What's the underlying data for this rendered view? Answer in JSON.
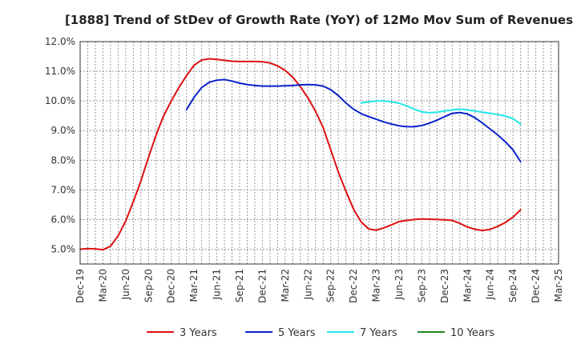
{
  "chart_data": {
    "type": "line",
    "title": "[1888]  Trend of StDev of Growth Rate (YoY) of 12Mo Mov Sum of Revenues",
    "xlabel": "",
    "ylabel": "",
    "ylim": [
      4.5,
      12.0
    ],
    "y_ticks": [
      5.0,
      6.0,
      7.0,
      8.0,
      9.0,
      10.0,
      11.0,
      12.0
    ],
    "y_tick_labels": [
      "5.0%",
      "6.0%",
      "7.0%",
      "8.0%",
      "9.0%",
      "10.0%",
      "11.0%",
      "12.0%"
    ],
    "x_tick_labels": [
      "Dec-19",
      "Mar-20",
      "Jun-20",
      "Sep-20",
      "Dec-20",
      "Mar-21",
      "Jun-21",
      "Sep-21",
      "Dec-21",
      "Mar-22",
      "Jun-22",
      "Sep-22",
      "Dec-22",
      "Mar-23",
      "Jun-23",
      "Sep-23",
      "Dec-23",
      "Mar-24",
      "Jun-24",
      "Sep-24",
      "Dec-24",
      "Mar-25"
    ],
    "grid": true,
    "legend_position": "bottom",
    "series": [
      {
        "name": "3 Years",
        "color": "#dd1111",
        "start_index": 0,
        "values": [
          5.0,
          5.02,
          5.01,
          4.98,
          5.1,
          5.45,
          5.95,
          6.6,
          7.3,
          8.1,
          8.85,
          9.5,
          10.0,
          10.45,
          10.85,
          11.2,
          11.38,
          11.42,
          11.4,
          11.37,
          11.34,
          11.33,
          11.33,
          11.33,
          11.32,
          11.28,
          11.18,
          11.03,
          10.8,
          10.48,
          10.1,
          9.65,
          9.1,
          8.35,
          7.6,
          6.95,
          6.35,
          5.92,
          5.68,
          5.64,
          5.72,
          5.82,
          5.93,
          5.97,
          6.0,
          6.02,
          6.01,
          6.0,
          5.99,
          5.97,
          5.87,
          5.75,
          5.67,
          5.63,
          5.67,
          5.77,
          5.9,
          6.08,
          6.33
        ]
      },
      {
        "name": "5 Years",
        "color": "#0a22cc",
        "start_index": 14,
        "values": [
          9.7,
          10.12,
          10.45,
          10.63,
          10.7,
          10.72,
          10.67,
          10.6,
          10.55,
          10.52,
          10.5,
          10.5,
          10.5,
          10.51,
          10.52,
          10.54,
          10.55,
          10.54,
          10.5,
          10.38,
          10.18,
          9.93,
          9.72,
          9.57,
          9.47,
          9.38,
          9.29,
          9.22,
          9.16,
          9.13,
          9.13,
          9.17,
          9.25,
          9.35,
          9.47,
          9.58,
          9.61,
          9.56,
          9.43,
          9.25,
          9.05,
          8.85,
          8.62,
          8.35,
          7.95
        ]
      },
      {
        "name": "7 Years",
        "color": "#22e5e5",
        "start_index": 37,
        "values": [
          9.93,
          9.97,
          10.0,
          10.0,
          9.97,
          9.92,
          9.83,
          9.72,
          9.63,
          9.6,
          9.62,
          9.66,
          9.7,
          9.72,
          9.7,
          9.66,
          9.62,
          9.58,
          9.54,
          9.49,
          9.4,
          9.22
        ]
      },
      {
        "name": "10 Years",
        "color": "#228822",
        "start_index": 0,
        "values": []
      }
    ]
  }
}
